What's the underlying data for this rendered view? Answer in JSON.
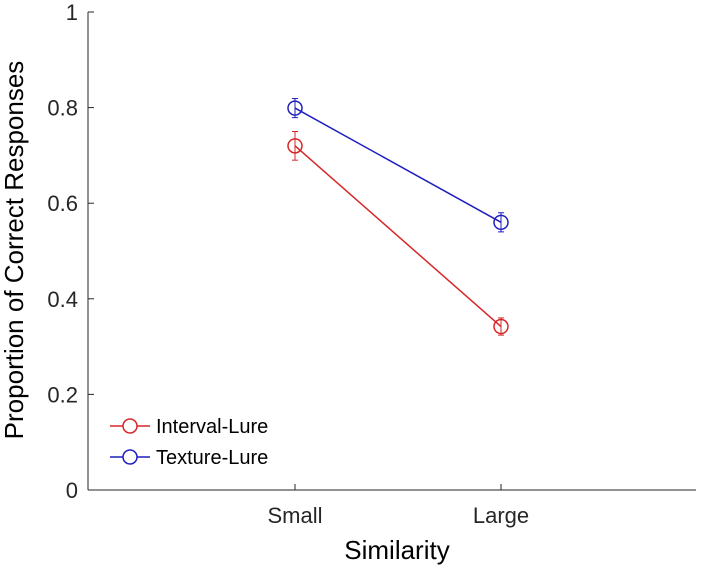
{
  "chart_data": {
    "type": "line",
    "title": "",
    "xlabel": "Similarity",
    "ylabel": "Proportion of Correct Responses",
    "categories": [
      "Small",
      "Large"
    ],
    "ylim": [
      0,
      1
    ],
    "yticks": [
      0,
      0.2,
      0.4,
      0.6,
      0.8,
      1
    ],
    "ytick_labels": [
      "0",
      "0.2",
      "0.4",
      "0.6",
      "0.8",
      "1"
    ],
    "grid": false,
    "legend_position": "bottom-left",
    "series": [
      {
        "name": "Interval-Lure",
        "color": "#d62728",
        "values": [
          0.72,
          0.342
        ],
        "errors": [
          0.03,
          0.018
        ],
        "marker": "circle"
      },
      {
        "name": "Texture-Lure",
        "color": "#1f1fbf",
        "values": [
          0.799,
          0.56
        ],
        "errors": [
          0.02,
          0.02
        ],
        "marker": "circle"
      }
    ]
  }
}
